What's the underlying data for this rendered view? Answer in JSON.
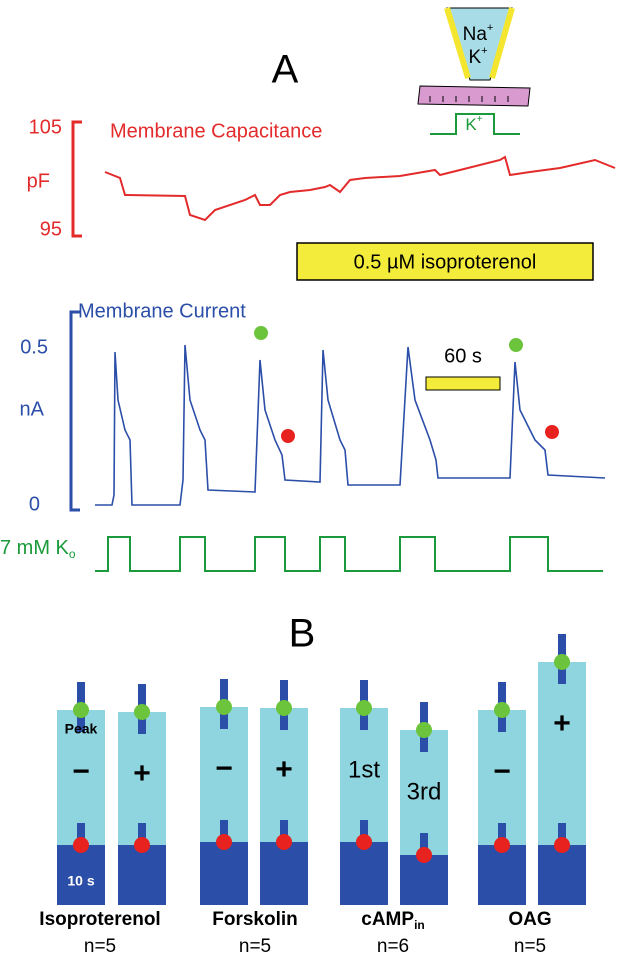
{
  "panel_a": {
    "label": "A",
    "pipette": {
      "inner_1": {
        "text": "Na",
        "sup": "+"
      },
      "inner_2": {
        "text": "K",
        "sup": "+"
      },
      "pulse": {
        "text": "K",
        "sup": "+"
      }
    },
    "capacitance": {
      "title": "Membrane Capacitance",
      "top": "105",
      "unit": "pF",
      "bottom": "95"
    },
    "drug_bar": "0.5 µM isoproterenol",
    "current": {
      "title": "Membrane Current",
      "top": "0.5",
      "unit": "nA",
      "bottom": "0",
      "scale": "60 s"
    },
    "ko": {
      "text": "7 mM K",
      "sub": "o"
    }
  },
  "panel_b": {
    "label": "B",
    "peak": "Peak",
    "ten_s": "10 s",
    "bar_labels": [
      "−",
      "+",
      "−",
      "+",
      "1st",
      "3rd",
      "−",
      "+"
    ],
    "groups": [
      {
        "name": "Isoproterenol",
        "n": "n=5"
      },
      {
        "name": "Forskolin",
        "n": "n=5"
      },
      {
        "name": "cAMP",
        "sub": "in",
        "n": "n=6"
      },
      {
        "name": "OAG",
        "n": "n=5"
      }
    ]
  }
}
